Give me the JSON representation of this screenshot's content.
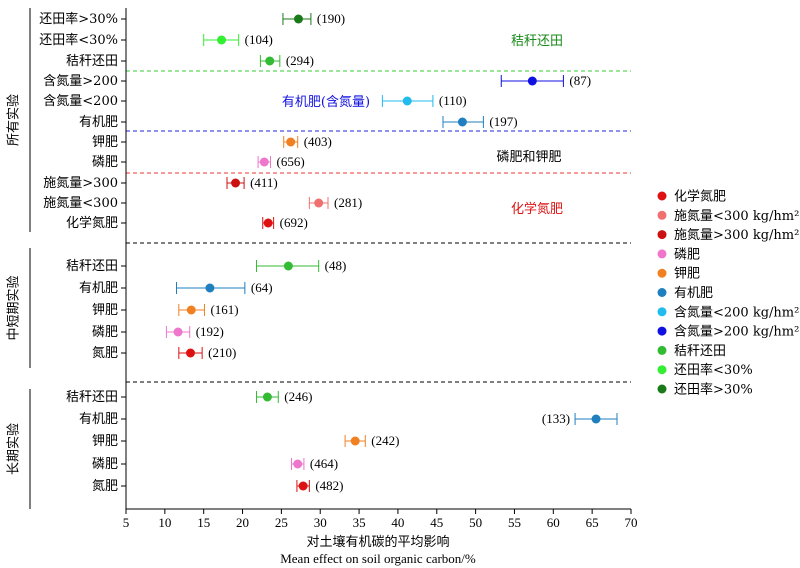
{
  "chart_data": {
    "type": "scatter",
    "variant": "forest-plot",
    "xlabel": "对土壤有机碳的平均影响",
    "xlabel_en": "Mean effect on soil organic carbon/%",
    "xlim": [
      5,
      70
    ],
    "xticks": [
      "5",
      "10",
      "15",
      "20",
      "25",
      "30",
      "35",
      "40",
      "45",
      "50",
      "55",
      "60",
      "65",
      "70"
    ],
    "groups": [
      {
        "name": "所有实验",
        "rows": [
          {
            "label": "还田率>30%",
            "mean": 27.2,
            "low": 25.2,
            "high": 28.8,
            "n": "(190)",
            "color": "#1a7a1a"
          },
          {
            "label": "还田率<30%",
            "mean": 17.3,
            "low": 15.0,
            "high": 19.5,
            "n": "(104)",
            "color": "#33ee33"
          },
          {
            "label": "秸秆还田",
            "mean": 23.5,
            "low": 22.3,
            "high": 24.8,
            "n": "(294)",
            "color": "#33bb33"
          },
          {
            "label": "含氮量>200",
            "mean": 57.3,
            "low": 53.3,
            "high": 61.3,
            "n": "(87)",
            "color": "#1010e0"
          },
          {
            "label": "含氮量<200",
            "mean": 41.2,
            "low": 38.0,
            "high": 44.5,
            "n": "(110)",
            "color": "#22bbee"
          },
          {
            "label": "有机肥",
            "mean": 48.3,
            "low": 45.8,
            "high": 51.0,
            "n": "(197)",
            "color": "#1f7fbf"
          },
          {
            "label": "钾肥",
            "mean": 26.2,
            "low": 25.3,
            "high": 27.1,
            "n": "(403)",
            "color": "#f08020"
          },
          {
            "label": "磷肥",
            "mean": 22.8,
            "low": 22.0,
            "high": 23.6,
            "n": "(656)",
            "color": "#ee77cc"
          },
          {
            "label": "施氮量>300",
            "mean": 19.1,
            "low": 18.0,
            "high": 20.2,
            "n": "(411)",
            "color": "#cc1111"
          },
          {
            "label": "施氮量<300",
            "mean": 29.8,
            "low": 28.6,
            "high": 31.0,
            "n": "(281)",
            "color": "#f07070"
          },
          {
            "label": "化学氮肥",
            "mean": 23.3,
            "low": 22.6,
            "high": 24.0,
            "n": "(692)",
            "color": "#dd1111"
          }
        ]
      },
      {
        "name": "中短期实验",
        "rows": [
          {
            "label": "秸秆还田",
            "mean": 25.9,
            "low": 21.8,
            "high": 29.8,
            "n": "(48)",
            "color": "#33bb33"
          },
          {
            "label": "有机肥",
            "mean": 15.8,
            "low": 11.5,
            "high": 20.3,
            "n": "(64)",
            "color": "#1f7fbf"
          },
          {
            "label": "钾肥",
            "mean": 13.4,
            "low": 11.8,
            "high": 15.1,
            "n": "(161)",
            "color": "#f08020"
          },
          {
            "label": "磷肥",
            "mean": 11.7,
            "low": 10.2,
            "high": 13.2,
            "n": "(192)",
            "color": "#ee77cc"
          },
          {
            "label": "氮肥",
            "mean": 13.3,
            "low": 11.8,
            "high": 14.8,
            "n": "(210)",
            "color": "#dd1111"
          }
        ]
      },
      {
        "name": "长期实验",
        "rows": [
          {
            "label": "秸秆还田",
            "mean": 23.2,
            "low": 21.8,
            "high": 24.6,
            "n": "(246)",
            "color": "#33bb33"
          },
          {
            "label": "有机肥",
            "mean": 65.5,
            "low": 62.8,
            "high": 68.2,
            "n": "(133)",
            "color": "#1f7fbf",
            "n_left": true
          },
          {
            "label": "钾肥",
            "mean": 34.5,
            "low": 33.2,
            "high": 35.8,
            "n": "(242)",
            "color": "#f08020"
          },
          {
            "label": "磷肥",
            "mean": 27.1,
            "low": 26.3,
            "high": 27.9,
            "n": "(464)",
            "color": "#ee77cc"
          },
          {
            "label": "氮肥",
            "mean": 27.8,
            "low": 27.0,
            "high": 28.6,
            "n": "(482)",
            "color": "#dd1111"
          }
        ]
      }
    ],
    "annotations": [
      {
        "text": "秸秆还田",
        "color": "#1a8a1a"
      },
      {
        "text": "有机肥(含氮量)",
        "color": "#1010e0"
      },
      {
        "text": "磷肥和钾肥",
        "color": "#000000"
      },
      {
        "text": "化学氮肥",
        "color": "#dd1111"
      }
    ],
    "separators": [
      {
        "color": "#33cc33"
      },
      {
        "color": "#2222dd"
      },
      {
        "color": "#ee3333"
      },
      {
        "color": "#000000"
      },
      {
        "color": "#000000"
      }
    ],
    "legend": [
      {
        "label": "化学氮肥",
        "color": "#dd1111"
      },
      {
        "label": "施氮量<300 kg/hm²",
        "color": "#f07070"
      },
      {
        "label": "施氮量>300 kg/hm²",
        "color": "#cc1111"
      },
      {
        "label": "磷肥",
        "color": "#ee77cc"
      },
      {
        "label": "钾肥",
        "color": "#f08020"
      },
      {
        "label": "有机肥",
        "color": "#1f7fbf"
      },
      {
        "label": "含氮量<200  kg/hm²",
        "color": "#22bbee"
      },
      {
        "label": "含氮量>200  kg/hm²",
        "color": "#1010e0"
      },
      {
        "label": "秸秆还田",
        "color": "#33bb33"
      },
      {
        "label": "还田率<30%",
        "color": "#33ee33"
      },
      {
        "label": "还田率>30%",
        "color": "#1a7a1a"
      }
    ],
    "legend_position": "right"
  }
}
